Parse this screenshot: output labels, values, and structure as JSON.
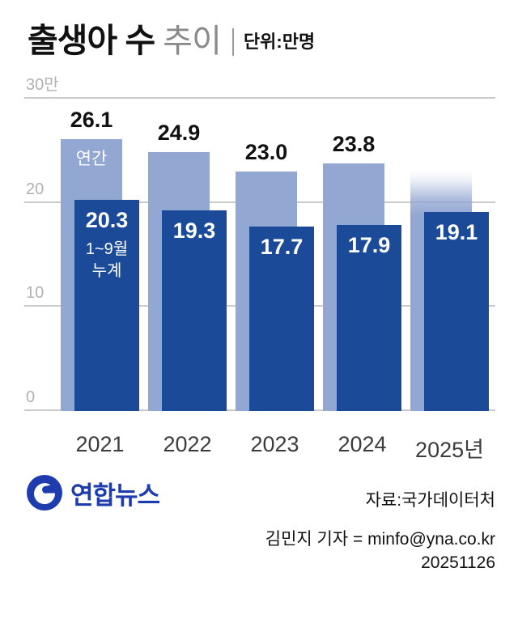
{
  "header": {
    "title_bold": "출생아 수",
    "title_light": "추이",
    "unit": "단위:만명"
  },
  "chart_data": {
    "type": "bar",
    "title": "출생아 수 추이",
    "unit": "만명",
    "categories": [
      "2021",
      "2022",
      "2023",
      "2024",
      "2025년"
    ],
    "series": [
      {
        "name": "연간",
        "color": "#93a7d3",
        "values": [
          26.1,
          24.9,
          23.0,
          23.8,
          null
        ]
      },
      {
        "name": "1~9월 누계",
        "color": "#1b4a99",
        "values": [
          20.3,
          19.3,
          17.7,
          17.9,
          19.1
        ]
      }
    ],
    "projected_bar": {
      "category_index": 4,
      "display_value": 23.2,
      "style": "fade-top"
    },
    "ylim": [
      0,
      30
    ],
    "yticks": [
      0,
      10,
      20,
      30
    ],
    "ytick_labels": [
      "0",
      "10",
      "20",
      "30만"
    ],
    "annual_series_label": "연간",
    "cumulative_series_label_lines": [
      "1~9월",
      "누계"
    ],
    "grid": true,
    "legend": "in-bar"
  },
  "footer": {
    "logo_text": "연합뉴스",
    "source": "자료:국가데이터처",
    "byline": "김민지 기자 = minfo@yna.co.kr",
    "date": "20251126"
  },
  "colors": {
    "annual_bar": "#93a7d3",
    "cumulative_bar": "#1b4a99",
    "grid": "#cbcbcb",
    "tick_text": "#b2b2b2",
    "value_text": "#111111",
    "logo_blue": "#1e3cae"
  }
}
